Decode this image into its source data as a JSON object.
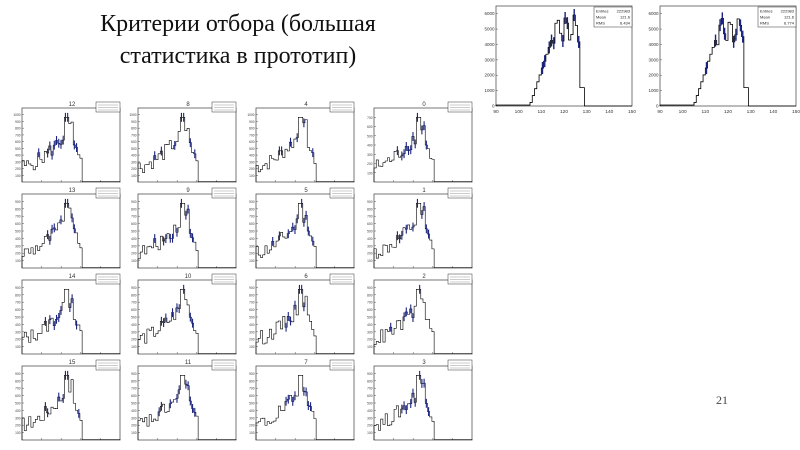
{
  "slide": {
    "title_line1": "Критерии отбора (большая",
    "title_line2": "статистика в прототип)",
    "page_number": "21"
  },
  "colors": {
    "hist_line": "#000000",
    "hist_accent": "#1a237e",
    "frame": "#555555"
  },
  "chart_data": [
    {
      "type": "bar",
      "title": "",
      "shape": "plateau",
      "xlim": [
        90,
        150
      ],
      "ylim": [
        0,
        6500
      ],
      "xticks": [
        "90",
        "100",
        "110",
        "120",
        "130",
        "140",
        "150"
      ],
      "yticks": [
        "0",
        "1000",
        "2000",
        "3000",
        "4000",
        "5000",
        "6000"
      ],
      "stats": [
        [
          "Entries",
          "222983"
        ],
        [
          "Mean",
          "121.6"
        ],
        [
          "RMS",
          "6.434"
        ]
      ]
    },
    {
      "type": "bar",
      "title": "",
      "shape": "plateau",
      "xlim": [
        90,
        150
      ],
      "ylim": [
        0,
        6500
      ],
      "xticks": [
        "90",
        "100",
        "110",
        "120",
        "130",
        "140",
        "150"
      ],
      "yticks": [
        "0",
        "1000",
        "2000",
        "3000",
        "4000",
        "5000",
        "6000"
      ],
      "stats": [
        [
          "Entries",
          "222983"
        ],
        [
          "Mean",
          "121.6"
        ],
        [
          "RMS",
          "6.774"
        ]
      ]
    },
    {
      "type": "bar",
      "title": "12",
      "shape": "peak",
      "ylim": [
        0,
        1100
      ],
      "yticks": [
        "100",
        "200",
        "300",
        "400",
        "500",
        "600",
        "700",
        "800",
        "900",
        "1000"
      ]
    },
    {
      "type": "bar",
      "title": "8",
      "shape": "peak",
      "ylim": [
        0,
        1100
      ],
      "yticks": [
        "100",
        "200",
        "300",
        "400",
        "500",
        "600",
        "700",
        "800",
        "900",
        "1000"
      ]
    },
    {
      "type": "bar",
      "title": "4",
      "shape": "peak",
      "ylim": [
        0,
        1100
      ],
      "yticks": [
        "100",
        "200",
        "300",
        "400",
        "500",
        "600",
        "700",
        "800",
        "900",
        "1000"
      ]
    },
    {
      "type": "bar",
      "title": "0",
      "shape": "peak",
      "ylim": [
        0,
        800
      ],
      "yticks": [
        "100",
        "200",
        "300",
        "400",
        "500",
        "600",
        "700"
      ]
    },
    {
      "type": "bar",
      "title": "13",
      "shape": "peak",
      "ylim": [
        0,
        1000
      ],
      "yticks": [
        "100",
        "200",
        "300",
        "400",
        "500",
        "600",
        "700",
        "800",
        "900"
      ]
    },
    {
      "type": "bar",
      "title": "9",
      "shape": "peak",
      "ylim": [
        0,
        1000
      ],
      "yticks": [
        "100",
        "200",
        "300",
        "400",
        "500",
        "600",
        "700",
        "800",
        "900"
      ]
    },
    {
      "type": "bar",
      "title": "5",
      "shape": "peak",
      "ylim": [
        0,
        1000
      ],
      "yticks": [
        "100",
        "200",
        "300",
        "400",
        "500",
        "600",
        "700",
        "800",
        "900"
      ]
    },
    {
      "type": "bar",
      "title": "1",
      "shape": "peak",
      "ylim": [
        0,
        1000
      ],
      "yticks": [
        "100",
        "200",
        "300",
        "400",
        "500",
        "600",
        "700",
        "800",
        "900"
      ]
    },
    {
      "type": "bar",
      "title": "14",
      "shape": "peak",
      "ylim": [
        0,
        1000
      ],
      "yticks": [
        "100",
        "200",
        "300",
        "400",
        "500",
        "600",
        "700",
        "800",
        "900"
      ]
    },
    {
      "type": "bar",
      "title": "10",
      "shape": "peak",
      "ylim": [
        0,
        1000
      ],
      "yticks": [
        "100",
        "200",
        "300",
        "400",
        "500",
        "600",
        "700",
        "800",
        "900"
      ]
    },
    {
      "type": "bar",
      "title": "6",
      "shape": "peak",
      "ylim": [
        0,
        1000
      ],
      "yticks": [
        "100",
        "200",
        "300",
        "400",
        "500",
        "600",
        "700",
        "800",
        "900"
      ]
    },
    {
      "type": "bar",
      "title": "2",
      "shape": "peak",
      "ylim": [
        0,
        1000
      ],
      "yticks": [
        "100",
        "200",
        "300",
        "400",
        "500",
        "600",
        "700",
        "800",
        "900"
      ]
    },
    {
      "type": "bar",
      "title": "15",
      "shape": "peak",
      "ylim": [
        0,
        1000
      ],
      "yticks": [
        "100",
        "200",
        "300",
        "400",
        "500",
        "600",
        "700",
        "800",
        "900"
      ]
    },
    {
      "type": "bar",
      "title": "11",
      "shape": "peak",
      "ylim": [
        0,
        1000
      ],
      "yticks": [
        "100",
        "200",
        "300",
        "400",
        "500",
        "600",
        "700",
        "800",
        "900"
      ]
    },
    {
      "type": "bar",
      "title": "7",
      "shape": "peak",
      "ylim": [
        0,
        1000
      ],
      "yticks": [
        "100",
        "200",
        "300",
        "400",
        "500",
        "600",
        "700",
        "800",
        "900"
      ]
    },
    {
      "type": "bar",
      "title": "3",
      "shape": "peak",
      "ylim": [
        0,
        1000
      ],
      "yticks": [
        "100",
        "200",
        "300",
        "400",
        "500",
        "600",
        "700",
        "800",
        "900"
      ]
    }
  ]
}
